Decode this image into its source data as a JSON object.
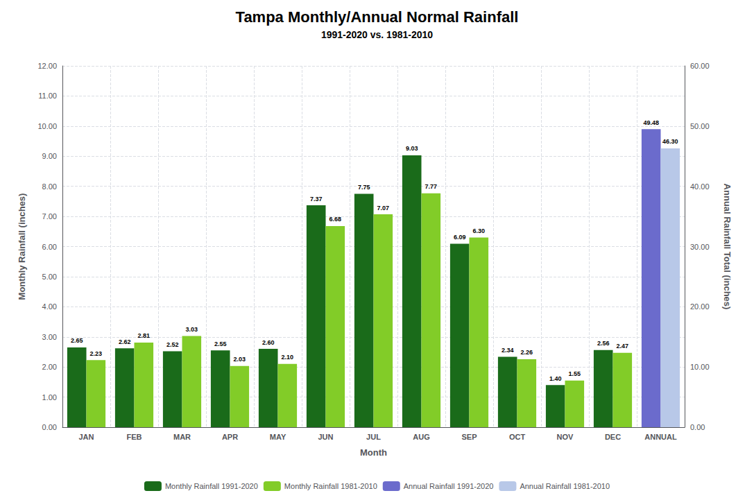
{
  "chart_data": {
    "type": "bar",
    "title": "Tampa Monthly/Annual Normal Rainfall",
    "subtitle": "1991-2020 vs. 1981-2010",
    "xlabel": "Month",
    "ylabel": "Monthly Rainfall (inches)",
    "y2label": "Annual Rainfall Total (inches)",
    "categories": [
      "JAN",
      "FEB",
      "MAR",
      "APR",
      "MAY",
      "JUN",
      "JUL",
      "AUG",
      "SEP",
      "OCT",
      "NOV",
      "DEC",
      "ANNUAL"
    ],
    "series": [
      {
        "name": "Monthly Rainfall 1991-2020",
        "color": "#1a6b1a",
        "values": [
          2.65,
          2.62,
          2.52,
          2.55,
          2.6,
          7.37,
          7.75,
          9.03,
          6.09,
          2.34,
          1.4,
          2.56,
          null
        ],
        "value_labels": [
          "2.65",
          "2.62",
          "2.52",
          "2.55",
          "2.60",
          "7.37",
          "7.75",
          "9.03",
          "6.09",
          "2.34",
          "1.40",
          "2.56",
          null
        ]
      },
      {
        "name": "Monthly Rainfall 1981-2010",
        "color": "#82cc28",
        "values": [
          2.23,
          2.81,
          3.03,
          2.03,
          2.1,
          6.68,
          7.07,
          7.77,
          6.3,
          2.26,
          1.55,
          2.47,
          null
        ],
        "value_labels": [
          "2.23",
          "2.81",
          "3.03",
          "2.03",
          "2.10",
          "6.68",
          "7.07",
          "7.77",
          "6.30",
          "2.26",
          "1.55",
          "2.47",
          null
        ]
      },
      {
        "name": "Annual Rainfall 1991-2020",
        "color": "#6b6bcc",
        "axis": "y2",
        "values": [
          null,
          null,
          null,
          null,
          null,
          null,
          null,
          null,
          null,
          null,
          null,
          null,
          49.48
        ],
        "value_labels": [
          null,
          null,
          null,
          null,
          null,
          null,
          null,
          null,
          null,
          null,
          null,
          null,
          "49.48"
        ]
      },
      {
        "name": "Annual Rainfall 1981-2010",
        "color": "#b8c8e8",
        "axis": "y2",
        "values": [
          null,
          null,
          null,
          null,
          null,
          null,
          null,
          null,
          null,
          null,
          null,
          null,
          46.3
        ],
        "value_labels": [
          null,
          null,
          null,
          null,
          null,
          null,
          null,
          null,
          null,
          null,
          null,
          null,
          "46.30"
        ]
      }
    ],
    "ylim": [
      0,
      12.0
    ],
    "yticks": [
      {
        "value": 0,
        "label": "0.00"
      },
      {
        "value": 1,
        "label": "1.00"
      },
      {
        "value": 2,
        "label": "2.00"
      },
      {
        "value": 3,
        "label": "3.00"
      },
      {
        "value": 4,
        "label": "4.00"
      },
      {
        "value": 5,
        "label": "5.00"
      },
      {
        "value": 6,
        "label": "6.00"
      },
      {
        "value": 7,
        "label": "7.00"
      },
      {
        "value": 8,
        "label": "8.00"
      },
      {
        "value": 9,
        "label": "9.00"
      },
      {
        "value": 10,
        "label": "10.00"
      },
      {
        "value": 11,
        "label": "11.00"
      },
      {
        "value": 12,
        "label": "12.00"
      }
    ],
    "y2lim": [
      0,
      60.0
    ],
    "y2ticks": [
      {
        "value": 0,
        "label": "0.00"
      },
      {
        "value": 10,
        "label": "10.00"
      },
      {
        "value": 20,
        "label": "20.00"
      },
      {
        "value": 30,
        "label": "30.00"
      },
      {
        "value": 40,
        "label": "40.00"
      },
      {
        "value": 50,
        "label": "50.00"
      },
      {
        "value": 60,
        "label": "60.00"
      }
    ],
    "grid": true,
    "legend": "bottom",
    "data_labels": true
  }
}
